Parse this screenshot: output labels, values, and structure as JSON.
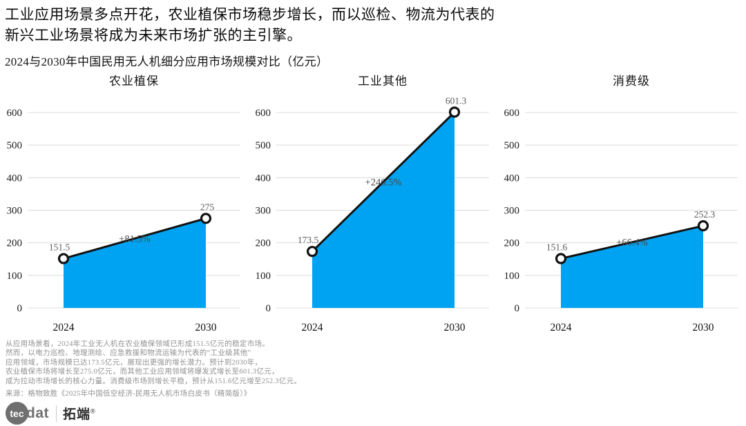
{
  "header": {
    "title_line1": "工业应用场景多点开花，农业植保市场稳步增长，而以巡检、物流为代表的",
    "title_line2": "新兴工业场景将成为未来市场扩张的主引擎。",
    "subtitle": "2024与2030年中国民用无人机细分应用市场规模对比（亿元）"
  },
  "chart_data": {
    "type": "area",
    "categories": [
      "2024",
      "2030"
    ],
    "ylim": [
      0,
      600
    ],
    "yticks": [
      0,
      100,
      200,
      300,
      400,
      500,
      600
    ],
    "grid": true,
    "legend": "none",
    "colors": {
      "area_fill": "#00A3F1",
      "trend_line": "#111111",
      "marker_fill": "#ffffff",
      "marker_stroke": "#111111",
      "gridline": "#dcdcdc",
      "value_label": "#5a5a5a",
      "growth_label": "#4a4a4a",
      "tick_label": "#1c1c1c"
    },
    "panels": [
      {
        "title": "农业植保",
        "values": [
          151.5,
          275
        ],
        "value_labels": [
          "151.5",
          "275"
        ],
        "growth_label": "+81.5%"
      },
      {
        "title": "工业其他",
        "values": [
          173.5,
          601.3
        ],
        "value_labels": [
          "173.5",
          "601.3"
        ],
        "growth_label": "+246.5%"
      },
      {
        "title": "消费级",
        "values": [
          151.6,
          252.3
        ],
        "value_labels": [
          "151.6",
          "252.3"
        ],
        "growth_label": "+66.4%"
      }
    ]
  },
  "footnote": {
    "lines": [
      "从应用场景看，2024年工业无人机在农业植保领域已形成151.5亿元的稳定市场。",
      "然而，以电力巡检、地理测绘、应急救援和物流运输为代表的“工业级其他”",
      "应用领域，市场规模已达173.5亿元，展现出更强的增长潜力。预计到2030年，",
      "农业植保市场将增长至275.0亿元，而其他工业应用领域将爆发式增长至601.3亿元，",
      "成为拉动市场增长的核心力量。消费级市场则增长平稳，预计从151.6亿元增至252.3亿元。"
    ],
    "source": "来源：格物致胜《2025年中国低空经济-民用无人机市场白皮书（精简版）》"
  },
  "logo": {
    "circle_text": "tec",
    "suffix": "dat",
    "brand": "拓端",
    "registered": "®"
  }
}
